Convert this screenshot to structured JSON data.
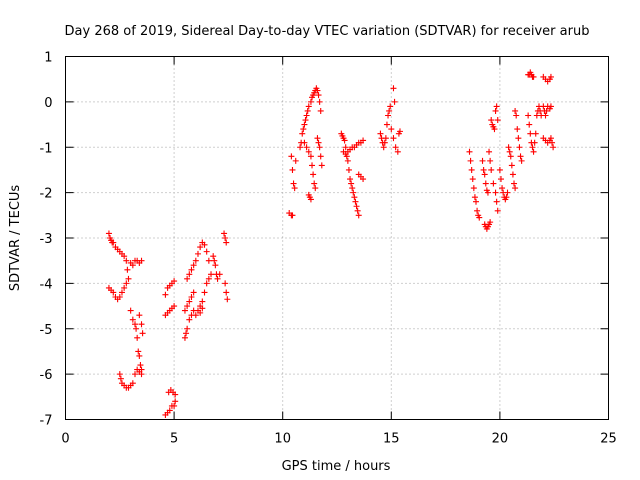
{
  "chart_data": {
    "type": "scatter",
    "title": "Day 268 of 2019, Sidereal Day-to-day VTEC variation (SDTVAR) for receiver arub",
    "xlabel": "GPS time / hours",
    "ylabel": "SDTVAR / TECUs",
    "xlim": [
      0,
      25
    ],
    "ylim": [
      -7,
      1
    ],
    "xticks": [
      "0",
      "5",
      "10",
      "15",
      "20",
      "25"
    ],
    "yticks": [
      "1",
      "0",
      "-1",
      "-2",
      "-3",
      "-4",
      "-5",
      "-6",
      "-7"
    ],
    "grid": true,
    "marker": "+",
    "marker_color": "#ff0000",
    "series": [
      {
        "name": "SDTVAR",
        "points": [
          [
            2.0,
            -2.9
          ],
          [
            2.05,
            -3.0
          ],
          [
            2.1,
            -3.05
          ],
          [
            2.15,
            -3.1
          ],
          [
            2.2,
            -3.1
          ],
          [
            2.3,
            -3.2
          ],
          [
            2.4,
            -3.25
          ],
          [
            2.5,
            -3.3
          ],
          [
            2.6,
            -3.35
          ],
          [
            2.7,
            -3.4
          ],
          [
            2.8,
            -3.5
          ],
          [
            2.85,
            -3.7
          ],
          [
            2.9,
            -3.9
          ],
          [
            2.0,
            -4.1
          ],
          [
            2.1,
            -4.15
          ],
          [
            2.2,
            -4.2
          ],
          [
            2.3,
            -4.3
          ],
          [
            2.4,
            -4.35
          ],
          [
            2.5,
            -4.3
          ],
          [
            2.6,
            -4.2
          ],
          [
            2.7,
            -4.1
          ],
          [
            2.8,
            -4.0
          ],
          [
            3.0,
            -3.55
          ],
          [
            3.1,
            -3.6
          ],
          [
            3.2,
            -3.5
          ],
          [
            3.3,
            -3.5
          ],
          [
            3.4,
            -3.55
          ],
          [
            3.5,
            -3.5
          ],
          [
            3.0,
            -4.6
          ],
          [
            3.1,
            -4.8
          ],
          [
            3.2,
            -4.9
          ],
          [
            3.25,
            -5.0
          ],
          [
            3.3,
            -5.2
          ],
          [
            3.35,
            -5.5
          ],
          [
            3.4,
            -5.6
          ],
          [
            3.45,
            -5.8
          ],
          [
            3.5,
            -5.9
          ],
          [
            3.4,
            -4.7
          ],
          [
            3.5,
            -4.9
          ],
          [
            3.55,
            -5.1
          ],
          [
            2.5,
            -6.0
          ],
          [
            2.55,
            -6.1
          ],
          [
            2.6,
            -6.2
          ],
          [
            2.7,
            -6.25
          ],
          [
            2.8,
            -6.3
          ],
          [
            2.9,
            -6.3
          ],
          [
            3.0,
            -6.25
          ],
          [
            3.1,
            -6.2
          ],
          [
            3.2,
            -6.0
          ],
          [
            3.3,
            -5.9
          ],
          [
            3.4,
            -5.95
          ],
          [
            3.5,
            -6.0
          ],
          [
            4.6,
            -6.9
          ],
          [
            4.7,
            -6.85
          ],
          [
            4.8,
            -6.8
          ],
          [
            4.9,
            -6.7
          ],
          [
            5.0,
            -6.7
          ],
          [
            5.05,
            -6.6
          ],
          [
            4.75,
            -6.4
          ],
          [
            4.85,
            -6.35
          ],
          [
            4.95,
            -6.4
          ],
          [
            5.05,
            -6.45
          ],
          [
            4.6,
            -4.7
          ],
          [
            4.7,
            -4.65
          ],
          [
            4.8,
            -4.6
          ],
          [
            4.9,
            -4.55
          ],
          [
            5.0,
            -4.5
          ],
          [
            4.6,
            -4.25
          ],
          [
            4.7,
            -4.1
          ],
          [
            4.8,
            -4.05
          ],
          [
            4.9,
            -4.0
          ],
          [
            5.0,
            -3.95
          ],
          [
            5.5,
            -5.2
          ],
          [
            5.55,
            -5.1
          ],
          [
            5.6,
            -5.0
          ],
          [
            5.7,
            -4.8
          ],
          [
            5.8,
            -4.7
          ],
          [
            5.9,
            -4.6
          ],
          [
            5.5,
            -4.6
          ],
          [
            5.6,
            -4.5
          ],
          [
            5.7,
            -4.4
          ],
          [
            5.8,
            -4.3
          ],
          [
            5.9,
            -4.2
          ],
          [
            5.6,
            -3.9
          ],
          [
            5.7,
            -3.8
          ],
          [
            5.8,
            -3.7
          ],
          [
            5.9,
            -3.6
          ],
          [
            6.0,
            -3.5
          ],
          [
            6.1,
            -3.35
          ],
          [
            6.2,
            -3.2
          ],
          [
            6.3,
            -3.1
          ],
          [
            6.4,
            -3.15
          ],
          [
            6.5,
            -3.3
          ],
          [
            6.6,
            -3.5
          ],
          [
            6.0,
            -4.7
          ],
          [
            6.1,
            -4.6
          ],
          [
            6.2,
            -4.5
          ],
          [
            6.3,
            -4.4
          ],
          [
            6.4,
            -4.2
          ],
          [
            6.5,
            -4.0
          ],
          [
            6.6,
            -3.9
          ],
          [
            6.7,
            -3.8
          ],
          [
            6.2,
            -4.65
          ],
          [
            6.3,
            -4.55
          ],
          [
            6.8,
            -3.4
          ],
          [
            6.85,
            -3.5
          ],
          [
            6.9,
            -3.6
          ],
          [
            6.95,
            -3.8
          ],
          [
            7.0,
            -3.9
          ],
          [
            7.1,
            -3.8
          ],
          [
            7.3,
            -2.9
          ],
          [
            7.35,
            -3.0
          ],
          [
            7.4,
            -3.1
          ],
          [
            7.35,
            -4.0
          ],
          [
            7.4,
            -4.2
          ],
          [
            7.45,
            -4.35
          ],
          [
            10.3,
            -2.45
          ],
          [
            10.4,
            -2.5
          ],
          [
            10.45,
            -2.5
          ],
          [
            10.4,
            -1.2
          ],
          [
            10.45,
            -1.5
          ],
          [
            10.5,
            -1.8
          ],
          [
            10.55,
            -1.9
          ],
          [
            10.6,
            -1.3
          ],
          [
            10.8,
            -1.0
          ],
          [
            10.85,
            -0.9
          ],
          [
            10.9,
            -0.7
          ],
          [
            10.95,
            -0.6
          ],
          [
            11.0,
            -0.5
          ],
          [
            11.05,
            -0.4
          ],
          [
            11.1,
            -0.3
          ],
          [
            11.15,
            -0.2
          ],
          [
            11.2,
            -0.1
          ],
          [
            11.3,
            0.0
          ],
          [
            11.35,
            0.1
          ],
          [
            11.4,
            0.15
          ],
          [
            11.45,
            0.2
          ],
          [
            11.5,
            0.25
          ],
          [
            11.55,
            0.3
          ],
          [
            11.6,
            0.25
          ],
          [
            11.65,
            0.15
          ],
          [
            11.7,
            0.0
          ],
          [
            11.75,
            -0.2
          ],
          [
            11.0,
            -0.9
          ],
          [
            11.1,
            -1.0
          ],
          [
            11.2,
            -1.1
          ],
          [
            11.3,
            -1.2
          ],
          [
            11.35,
            -1.4
          ],
          [
            11.4,
            -1.6
          ],
          [
            11.45,
            -1.8
          ],
          [
            11.5,
            -1.9
          ],
          [
            11.6,
            -0.8
          ],
          [
            11.65,
            -0.9
          ],
          [
            11.7,
            -1.0
          ],
          [
            11.75,
            -1.2
          ],
          [
            11.8,
            -1.4
          ],
          [
            11.2,
            -2.05
          ],
          [
            11.25,
            -2.1
          ],
          [
            11.3,
            -2.15
          ],
          [
            12.7,
            -0.7
          ],
          [
            12.75,
            -0.75
          ],
          [
            12.8,
            -0.8
          ],
          [
            12.85,
            -0.85
          ],
          [
            12.9,
            -1.0
          ],
          [
            12.95,
            -1.2
          ],
          [
            13.0,
            -1.3
          ],
          [
            13.05,
            -1.5
          ],
          [
            13.1,
            -1.7
          ],
          [
            13.15,
            -1.8
          ],
          [
            13.2,
            -1.9
          ],
          [
            13.25,
            -2.0
          ],
          [
            13.3,
            -2.1
          ],
          [
            13.35,
            -2.2
          ],
          [
            13.4,
            -2.3
          ],
          [
            13.45,
            -2.4
          ],
          [
            13.5,
            -2.5
          ],
          [
            12.8,
            -1.1
          ],
          [
            12.9,
            -1.15
          ],
          [
            13.0,
            -1.1
          ],
          [
            13.1,
            -1.05
          ],
          [
            13.2,
            -1.0
          ],
          [
            13.3,
            -1.0
          ],
          [
            13.4,
            -0.95
          ],
          [
            13.5,
            -0.9
          ],
          [
            13.6,
            -0.9
          ],
          [
            13.7,
            -0.85
          ],
          [
            13.5,
            -1.6
          ],
          [
            13.6,
            -1.65
          ],
          [
            13.7,
            -1.7
          ],
          [
            14.5,
            -0.7
          ],
          [
            14.55,
            -0.8
          ],
          [
            14.6,
            -0.9
          ],
          [
            14.65,
            -1.0
          ],
          [
            14.7,
            -0.9
          ],
          [
            14.75,
            -0.8
          ],
          [
            14.8,
            -0.5
          ],
          [
            14.85,
            -0.3
          ],
          [
            14.9,
            -0.2
          ],
          [
            14.95,
            -0.1
          ],
          [
            15.0,
            -0.6
          ],
          [
            15.1,
            -0.8
          ],
          [
            15.2,
            -1.0
          ],
          [
            15.3,
            -1.1
          ],
          [
            15.35,
            -0.7
          ],
          [
            15.4,
            -0.65
          ],
          [
            15.1,
            0.3
          ],
          [
            15.15,
            0.0
          ],
          [
            18.6,
            -1.1
          ],
          [
            18.65,
            -1.3
          ],
          [
            18.7,
            -1.5
          ],
          [
            18.75,
            -1.7
          ],
          [
            18.8,
            -1.9
          ],
          [
            18.85,
            -2.1
          ],
          [
            18.9,
            -2.2
          ],
          [
            18.95,
            -2.4
          ],
          [
            19.0,
            -2.5
          ],
          [
            19.05,
            -2.55
          ],
          [
            19.2,
            -1.3
          ],
          [
            19.25,
            -1.5
          ],
          [
            19.3,
            -1.6
          ],
          [
            19.35,
            -1.8
          ],
          [
            19.4,
            -1.95
          ],
          [
            19.45,
            -2.0
          ],
          [
            19.3,
            -2.7
          ],
          [
            19.35,
            -2.75
          ],
          [
            19.4,
            -2.8
          ],
          [
            19.45,
            -2.75
          ],
          [
            19.5,
            -2.7
          ],
          [
            19.55,
            -2.65
          ],
          [
            19.5,
            -1.1
          ],
          [
            19.55,
            -1.3
          ],
          [
            19.6,
            -1.5
          ],
          [
            19.7,
            -1.8
          ],
          [
            19.8,
            -2.0
          ],
          [
            19.85,
            -2.2
          ],
          [
            19.9,
            -2.4
          ],
          [
            19.6,
            -0.4
          ],
          [
            19.65,
            -0.5
          ],
          [
            19.7,
            -0.55
          ],
          [
            19.75,
            -0.6
          ],
          [
            19.8,
            -0.2
          ],
          [
            19.85,
            -0.1
          ],
          [
            19.9,
            -0.4
          ],
          [
            20.0,
            -1.5
          ],
          [
            20.05,
            -1.7
          ],
          [
            20.1,
            -1.9
          ],
          [
            20.15,
            -2.0
          ],
          [
            20.2,
            -2.1
          ],
          [
            20.25,
            -2.15
          ],
          [
            20.3,
            -2.1
          ],
          [
            20.35,
            -2.0
          ],
          [
            20.4,
            -1.0
          ],
          [
            20.45,
            -1.1
          ],
          [
            20.5,
            -1.2
          ],
          [
            20.55,
            -1.4
          ],
          [
            20.6,
            -1.6
          ],
          [
            20.65,
            -1.8
          ],
          [
            20.7,
            -1.9
          ],
          [
            20.7,
            -0.2
          ],
          [
            20.75,
            -0.3
          ],
          [
            20.8,
            -0.6
          ],
          [
            20.85,
            -0.8
          ],
          [
            20.9,
            -1.0
          ],
          [
            20.95,
            -1.2
          ],
          [
            21.0,
            -1.3
          ],
          [
            21.3,
            0.6
          ],
          [
            21.35,
            0.6
          ],
          [
            21.4,
            0.65
          ],
          [
            21.45,
            0.6
          ],
          [
            21.5,
            0.55
          ],
          [
            21.55,
            0.55
          ],
          [
            21.3,
            -0.3
          ],
          [
            21.35,
            -0.5
          ],
          [
            21.4,
            -0.7
          ],
          [
            21.45,
            -0.9
          ],
          [
            21.5,
            -1.0
          ],
          [
            21.55,
            -1.1
          ],
          [
            21.6,
            -0.9
          ],
          [
            21.65,
            -0.7
          ],
          [
            21.7,
            -0.3
          ],
          [
            21.75,
            -0.2
          ],
          [
            21.8,
            -0.1
          ],
          [
            21.85,
            -0.2
          ],
          [
            21.9,
            -0.3
          ],
          [
            22.0,
            -0.1
          ],
          [
            22.05,
            -0.2
          ],
          [
            22.1,
            -0.3
          ],
          [
            22.15,
            -0.2
          ],
          [
            22.2,
            -0.1
          ],
          [
            22.3,
            -0.15
          ],
          [
            22.35,
            -0.1
          ],
          [
            22.0,
            0.55
          ],
          [
            22.1,
            0.5
          ],
          [
            22.2,
            0.45
          ],
          [
            22.3,
            0.5
          ],
          [
            22.35,
            0.55
          ],
          [
            22.0,
            -0.8
          ],
          [
            22.1,
            -0.85
          ],
          [
            22.2,
            -0.9
          ],
          [
            22.3,
            -0.85
          ],
          [
            22.35,
            -0.8
          ],
          [
            22.4,
            -0.9
          ],
          [
            22.45,
            -1.0
          ]
        ]
      }
    ]
  }
}
